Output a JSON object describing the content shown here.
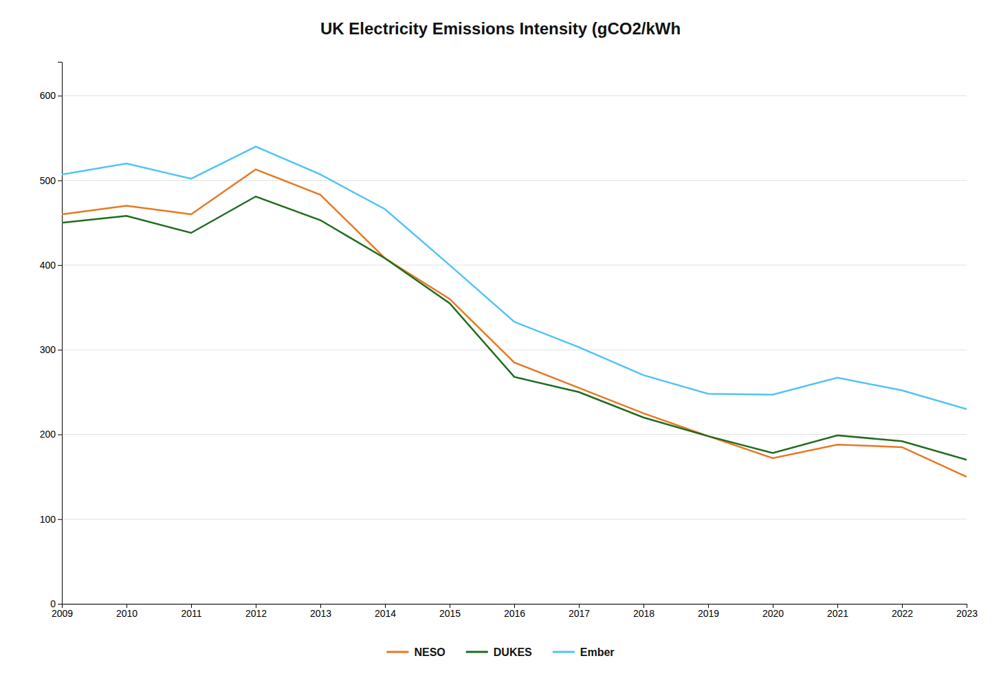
{
  "chart_data": {
    "type": "line",
    "title": "UK Electricity Emissions Intensity (gCO2/kWh",
    "x": [
      2009,
      2010,
      2011,
      2012,
      2013,
      2014,
      2015,
      2016,
      2017,
      2018,
      2019,
      2020,
      2021,
      2022,
      2023
    ],
    "series": [
      {
        "name": "NESO",
        "color": "#E87722",
        "values": [
          460,
          470,
          460,
          513,
          483,
          408,
          360,
          285,
          255,
          225,
          198,
          172,
          188,
          185,
          150
        ]
      },
      {
        "name": "DUKES",
        "color": "#1E6B1E",
        "values": [
          450,
          458,
          438,
          481,
          453,
          408,
          355,
          268,
          250,
          220,
          198,
          178,
          199,
          192,
          170
        ]
      },
      {
        "name": "Ember",
        "color": "#4FC3F7",
        "values": [
          507,
          520,
          502,
          540,
          507,
          466,
          400,
          333,
          303,
          270,
          248,
          247,
          267,
          252,
          230
        ]
      }
    ],
    "xlim": [
      2009,
      2023
    ],
    "xticks": [
      2009,
      2010,
      2011,
      2012,
      2013,
      2014,
      2015,
      2016,
      2017,
      2018,
      2019,
      2020,
      2021,
      2022,
      2023
    ],
    "ylim": [
      0,
      640
    ],
    "yticks": [
      0,
      100,
      200,
      300,
      400,
      500,
      600
    ],
    "grid": true,
    "legend": "bottom"
  }
}
